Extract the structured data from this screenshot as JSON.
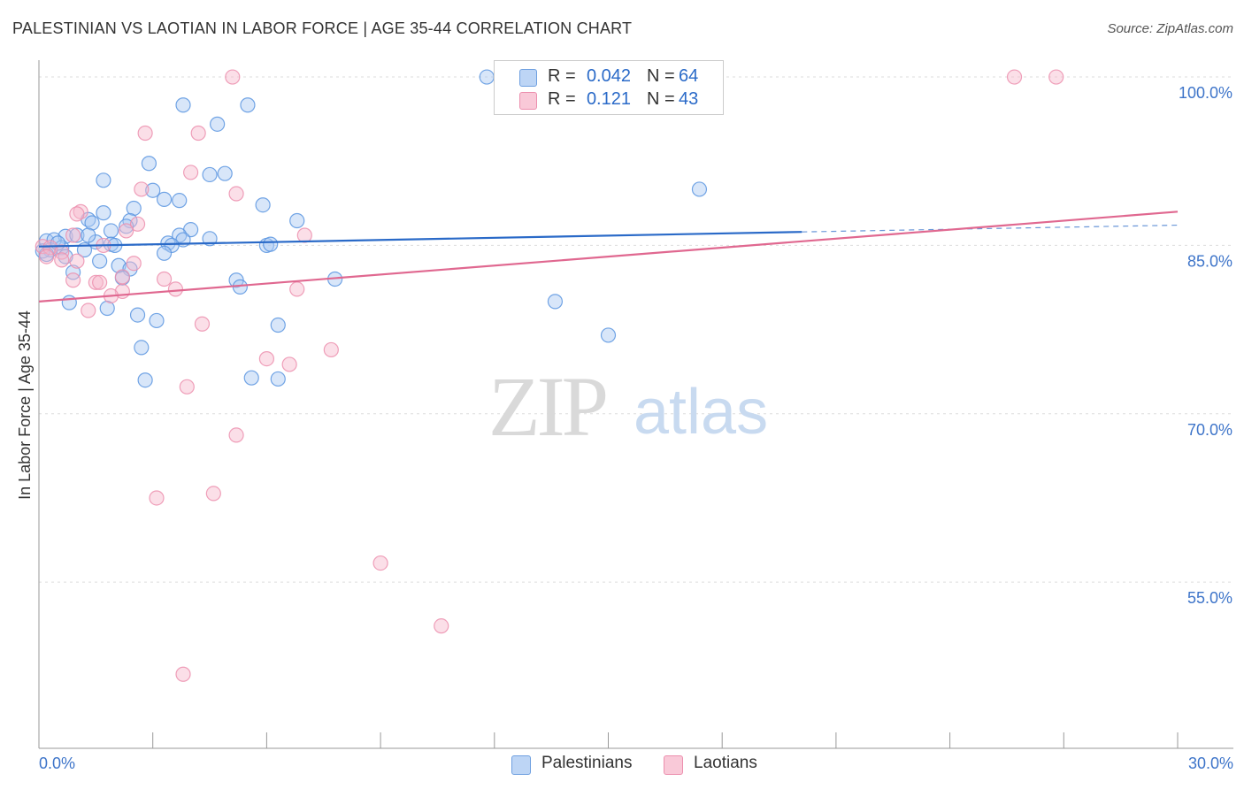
{
  "title": "PALESTINIAN VS LAOTIAN IN LABOR FORCE | AGE 35-44 CORRELATION CHART",
  "source": "Source: ZipAtlas.com",
  "watermark": {
    "zip": "ZIP",
    "atlas": "atlas"
  },
  "legend": {
    "rows": [
      {
        "r_label": "R =",
        "r_value": "0.042",
        "n_label": "N =",
        "n_value": "64",
        "color": "#a9c8f2"
      },
      {
        "r_label": "R =",
        "r_value": "0.121",
        "n_label": "N =",
        "n_value": "43",
        "color": "#f6b8cc"
      }
    ]
  },
  "bottom_legend": [
    {
      "label": "Palestinians",
      "color": "#a9c8f2"
    },
    {
      "label": "Laotians",
      "color": "#f6b8cc"
    }
  ],
  "chart_data": {
    "type": "scatter",
    "title": "PALESTINIAN VS LAOTIAN IN LABOR FORCE | AGE 35-44 CORRELATION CHART",
    "xlabel": "",
    "ylabel": "In Labor Force | Age 35-44",
    "xlim": [
      0,
      30
    ],
    "ylim": [
      40.2,
      101.5
    ],
    "x_tick_labels": [
      {
        "value": 0,
        "label": "0.0%"
      },
      {
        "value": 30,
        "label": "30.0%"
      }
    ],
    "y_tick_labels": [
      {
        "value": 100,
        "label": "100.0%"
      },
      {
        "value": 85,
        "label": "85.0%"
      },
      {
        "value": 70,
        "label": "70.0%"
      },
      {
        "value": 55,
        "label": "55.0%"
      }
    ],
    "grid": true,
    "series": [
      {
        "name": "Palestinians",
        "color": "#5b95e0",
        "fill": "#a9c8f2",
        "line_color": "#2a6ac8",
        "trend": {
          "x0": 0,
          "y0": 84.9,
          "x1": 20.1,
          "y1": 86.2,
          "dash_to_x": 30,
          "dash_to_y": 86.8
        },
        "points": [
          [
            11.8,
            100.0
          ],
          [
            3.8,
            97.5
          ],
          [
            5.5,
            97.5
          ],
          [
            4.7,
            95.8
          ],
          [
            1.7,
            90.8
          ],
          [
            2.9,
            92.3
          ],
          [
            4.5,
            91.3
          ],
          [
            4.9,
            91.4
          ],
          [
            17.4,
            90.0
          ],
          [
            3.0,
            89.9
          ],
          [
            3.3,
            89.1
          ],
          [
            3.7,
            89.0
          ],
          [
            5.9,
            88.6
          ],
          [
            2.5,
            88.3
          ],
          [
            1.7,
            87.9
          ],
          [
            1.3,
            87.3
          ],
          [
            1.4,
            87.0
          ],
          [
            2.4,
            87.2
          ],
          [
            6.8,
            87.2
          ],
          [
            2.3,
            86.7
          ],
          [
            4.0,
            86.4
          ],
          [
            1.9,
            86.3
          ],
          [
            3.7,
            85.9
          ],
          [
            0.7,
            85.8
          ],
          [
            1.0,
            85.9
          ],
          [
            3.8,
            85.5
          ],
          [
            4.5,
            85.6
          ],
          [
            0.2,
            85.4
          ],
          [
            0.4,
            85.5
          ],
          [
            3.4,
            85.2
          ],
          [
            3.5,
            85.0
          ],
          [
            6.0,
            85.0
          ],
          [
            6.1,
            85.1
          ],
          [
            1.5,
            85.3
          ],
          [
            1.9,
            85.1
          ],
          [
            0.6,
            84.8
          ],
          [
            0.3,
            84.6
          ],
          [
            1.2,
            84.6
          ],
          [
            3.3,
            84.3
          ],
          [
            0.1,
            84.5
          ],
          [
            0.7,
            84.0
          ],
          [
            2.1,
            83.2
          ],
          [
            2.4,
            82.9
          ],
          [
            1.6,
            83.6
          ],
          [
            0.9,
            82.6
          ],
          [
            2.2,
            82.1
          ],
          [
            5.2,
            81.9
          ],
          [
            5.3,
            81.3
          ],
          [
            7.8,
            82.0
          ],
          [
            13.6,
            80.0
          ],
          [
            0.8,
            79.9
          ],
          [
            1.8,
            79.4
          ],
          [
            2.6,
            78.8
          ],
          [
            3.1,
            78.3
          ],
          [
            6.3,
            77.9
          ],
          [
            15.0,
            77.0
          ],
          [
            2.7,
            75.9
          ],
          [
            2.8,
            73.0
          ],
          [
            5.6,
            73.2
          ],
          [
            6.3,
            73.1
          ],
          [
            0.2,
            84.2
          ],
          [
            0.5,
            85.2
          ],
          [
            1.3,
            85.9
          ],
          [
            2.0,
            85.0
          ]
        ]
      },
      {
        "name": "Laotians",
        "color": "#ec8fae",
        "fill": "#f6b8cc",
        "line_color": "#e06890",
        "trend": {
          "x0": 0,
          "y0": 80.0,
          "x1": 30,
          "y1": 88.0
        },
        "points": [
          [
            5.1,
            100.0
          ],
          [
            25.7,
            100.0
          ],
          [
            26.8,
            100.0
          ],
          [
            2.8,
            95.0
          ],
          [
            4.2,
            95.0
          ],
          [
            4.0,
            91.5
          ],
          [
            2.7,
            90.0
          ],
          [
            5.2,
            89.6
          ],
          [
            1.1,
            88.0
          ],
          [
            1.0,
            87.8
          ],
          [
            2.6,
            86.9
          ],
          [
            2.3,
            86.3
          ],
          [
            7.0,
            85.9
          ],
          [
            0.9,
            85.9
          ],
          [
            1.7,
            85.0
          ],
          [
            0.1,
            84.9
          ],
          [
            0.3,
            84.8
          ],
          [
            0.6,
            84.4
          ],
          [
            0.2,
            84.0
          ],
          [
            0.6,
            83.7
          ],
          [
            1.0,
            83.6
          ],
          [
            2.5,
            83.4
          ],
          [
            2.2,
            82.2
          ],
          [
            3.3,
            82.0
          ],
          [
            0.9,
            81.9
          ],
          [
            1.5,
            81.7
          ],
          [
            1.6,
            81.7
          ],
          [
            3.6,
            81.1
          ],
          [
            6.8,
            81.1
          ],
          [
            2.2,
            80.9
          ],
          [
            1.9,
            80.5
          ],
          [
            1.3,
            79.2
          ],
          [
            4.3,
            78.0
          ],
          [
            7.7,
            75.7
          ],
          [
            6.0,
            74.9
          ],
          [
            6.6,
            74.4
          ],
          [
            3.9,
            72.4
          ],
          [
            5.2,
            68.1
          ],
          [
            3.1,
            62.5
          ],
          [
            4.6,
            62.9
          ],
          [
            9.0,
            56.7
          ],
          [
            10.6,
            51.1
          ],
          [
            3.8,
            46.8
          ]
        ]
      }
    ]
  }
}
